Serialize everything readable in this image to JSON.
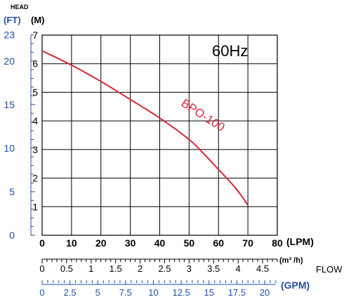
{
  "chart_data": {
    "type": "line",
    "title": "",
    "annotation": "60Hz",
    "y_title": "HEAD",
    "ylabel_m": "(M)",
    "ylabel_ft": "(FT)",
    "xlabel_lpm": "(LPM)",
    "xlabel_m3h": "(m³ /h)",
    "xlabel_gpm": "(GPM)",
    "flow_label": "FLOW",
    "grid": true,
    "xlim": [
      0,
      80
    ],
    "ylim": [
      0,
      7
    ],
    "x_ticks_lpm": [
      "0",
      "10",
      "20",
      "30",
      "40",
      "50",
      "60",
      "70",
      "80"
    ],
    "y_ticks_m": [
      "1",
      "2",
      "3",
      "4",
      "5",
      "6",
      "7"
    ],
    "y_ticks_ft": [
      "0",
      "5",
      "10",
      "15",
      "20",
      "23"
    ],
    "x_ticks_m3h": [
      "0",
      "0.5",
      "1",
      "1.5",
      "2",
      "2.5",
      "3",
      "3.5",
      "4",
      "4.5"
    ],
    "x_ticks_gpm": [
      "0",
      "2.5",
      "5",
      "7.5",
      "10",
      "12.5",
      "15",
      "17.5",
      "20"
    ],
    "series": [
      {
        "name": "BPO-100",
        "color": "#d42a3a",
        "x": [
          0,
          10,
          20,
          30,
          40,
          50,
          55,
          60,
          65,
          68,
          70
        ],
        "y": [
          6.45,
          5.95,
          5.38,
          4.75,
          4.1,
          3.35,
          2.85,
          2.3,
          1.75,
          1.35,
          1.05
        ]
      }
    ]
  }
}
